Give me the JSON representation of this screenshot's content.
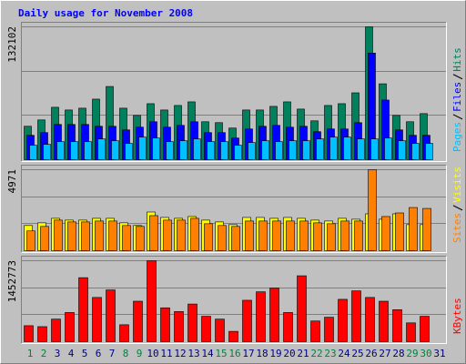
{
  "chart_data": [
    {
      "type": "bar",
      "title": "Daily usage for November 2008",
      "ylim": [
        0,
        132102
      ],
      "yticks": [
        132102
      ],
      "series": [
        {
          "name": "Pages",
          "color": "#00c0ff",
          "values": [
            14380,
            15280,
            17970,
            17970,
            17970,
            20670,
            18870,
            16170,
            22470,
            21570,
            17970,
            18870,
            20670,
            17970,
            17970,
            14380,
            17070,
            18870,
            17970,
            18870,
            18870,
            20670,
            22470,
            22470,
            20670,
            20670,
            21570,
            18870,
            16170,
            16170,
            0
          ]
        },
        {
          "name": "Files",
          "color": "#0000ff",
          "values": [
            24260,
            26960,
            35050,
            35050,
            35050,
            33250,
            33250,
            29650,
            32350,
            37740,
            32350,
            34150,
            37740,
            26960,
            26960,
            21570,
            30550,
            33250,
            34150,
            32350,
            33250,
            27860,
            30550,
            30550,
            36840,
            106030,
            59310,
            29650,
            24260,
            24260,
            0
          ]
        },
        {
          "name": "Hits",
          "color": "#00805c",
          "values": [
            33250,
            39540,
            52120,
            49420,
            51220,
            60210,
            72790,
            51220,
            44030,
            55710,
            49420,
            53920,
            57510,
            37740,
            36840,
            31450,
            49420,
            49420,
            53020,
            57510,
            50320,
            38640,
            53920,
            55710,
            66500,
            132102,
            75480,
            44030,
            37740,
            45830,
            0
          ]
        }
      ]
    },
    {
      "type": "bar",
      "ylim": [
        0,
        4971
      ],
      "yticks": [
        4971
      ],
      "series": [
        {
          "name": "Sites",
          "color": "#ff8000",
          "values": [
            1214,
            1490,
            1877,
            1766,
            1766,
            1822,
            1822,
            1546,
            1490,
            2153,
            1877,
            1877,
            1987,
            1656,
            1546,
            1490,
            1822,
            1822,
            1822,
            1822,
            1822,
            1711,
            1656,
            1822,
            1822,
            4971,
            2098,
            2318,
            2650,
            2594,
            0
          ]
        },
        {
          "name": "Visits",
          "color": "#ffff00",
          "values": [
            1546,
            1711,
            1987,
            1877,
            1877,
            1987,
            1987,
            1711,
            1546,
            2374,
            2042,
            1987,
            2098,
            1877,
            1766,
            1601,
            2042,
            2042,
            1987,
            2042,
            1987,
            1877,
            1822,
            1987,
            1932,
            2263,
            1932,
            2263,
            1601,
            1601,
            0
          ]
        }
      ]
    },
    {
      "type": "bar",
      "ylim": [
        0,
        1452773
      ],
      "yticks": [
        1452773
      ],
      "categories": [
        "1",
        "2",
        "3",
        "4",
        "5",
        "6",
        "7",
        "8",
        "9",
        "10",
        "11",
        "12",
        "13",
        "14",
        "15",
        "16",
        "17",
        "18",
        "19",
        "20",
        "21",
        "22",
        "23",
        "24",
        "25",
        "26",
        "27",
        "28",
        "29",
        "30",
        "31"
      ],
      "category_colors": [
        "#008040",
        "#008040",
        "#000080",
        "#000080",
        "#000080",
        "#000080",
        "#000080",
        "#008040",
        "#008040",
        "#000080",
        "#000080",
        "#000080",
        "#000080",
        "#000080",
        "#008040",
        "#008040",
        "#000080",
        "#000080",
        "#000080",
        "#000080",
        "#000080",
        "#008040",
        "#008040",
        "#000080",
        "#000080",
        "#000080",
        "#000080",
        "#000080",
        "#008040",
        "#008040",
        "#000080"
      ],
      "series": [
        {
          "name": "KBytes",
          "color": "#ff0000",
          "values": [
            287200,
            270300,
            405400,
            523700,
            1148700,
            794000,
            929100,
            304100,
            726400,
            1452773,
            608100,
            540600,
            675700,
            456100,
            405400,
            185800,
            743300,
            895300,
            962900,
            523700,
            1182500,
            371600,
            439200,
            760200,
            912200,
            794000,
            726400,
            574400,
            337900,
            456100,
            0
          ]
        }
      ]
    }
  ]
}
